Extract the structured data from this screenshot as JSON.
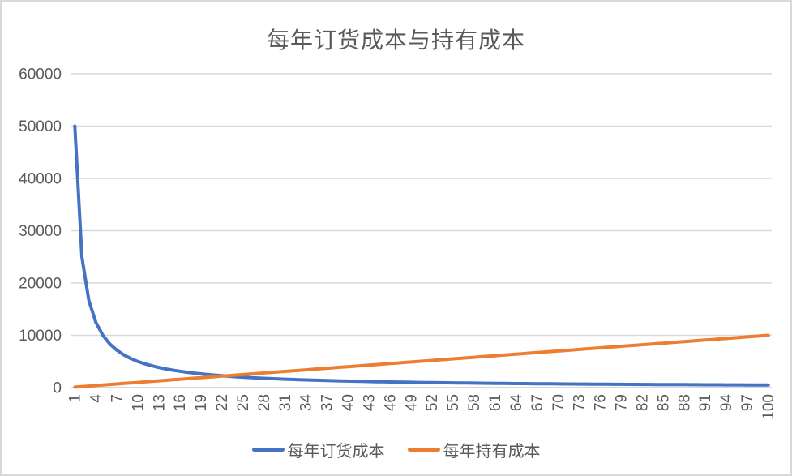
{
  "chart_data": {
    "type": "line",
    "title": "每年订货成本与持有成本",
    "x": [
      1,
      2,
      3,
      4,
      5,
      6,
      7,
      8,
      9,
      10,
      11,
      12,
      13,
      14,
      15,
      16,
      17,
      18,
      19,
      20,
      21,
      22,
      23,
      24,
      25,
      26,
      27,
      28,
      29,
      30,
      31,
      32,
      33,
      34,
      35,
      36,
      37,
      38,
      39,
      40,
      41,
      42,
      43,
      44,
      45,
      46,
      47,
      48,
      49,
      50,
      51,
      52,
      53,
      54,
      55,
      56,
      57,
      58,
      59,
      60,
      61,
      62,
      63,
      64,
      65,
      66,
      67,
      68,
      69,
      70,
      71,
      72,
      73,
      74,
      75,
      76,
      77,
      78,
      79,
      80,
      81,
      82,
      83,
      84,
      85,
      86,
      87,
      88,
      89,
      90,
      91,
      92,
      93,
      94,
      95,
      96,
      97,
      98,
      99,
      100
    ],
    "series": [
      {
        "name": "每年订货成本",
        "color": "#4472c4",
        "values": [
          50000,
          25000,
          16667,
          12500,
          10000,
          8333,
          7143,
          6250,
          5556,
          5000,
          4545,
          4167,
          3846,
          3571,
          3333,
          3125,
          2941,
          2778,
          2632,
          2500,
          2381,
          2273,
          2174,
          2083,
          2000,
          1923,
          1852,
          1786,
          1724,
          1667,
          1613,
          1563,
          1515,
          1471,
          1429,
          1389,
          1351,
          1316,
          1282,
          1250,
          1220,
          1190,
          1163,
          1136,
          1111,
          1087,
          1064,
          1042,
          1020,
          1000,
          980,
          962,
          943,
          926,
          909,
          893,
          877,
          862,
          847,
          833,
          820,
          806,
          794,
          781,
          769,
          758,
          746,
          735,
          725,
          714,
          704,
          694,
          685,
          676,
          667,
          658,
          649,
          641,
          633,
          625,
          617,
          610,
          602,
          595,
          588,
          581,
          575,
          568,
          562,
          556,
          549,
          543,
          538,
          532,
          526,
          521,
          515,
          510,
          505,
          500
        ]
      },
      {
        "name": "每年持有成本",
        "color": "#ed7d31",
        "values": [
          100,
          200,
          300,
          400,
          500,
          600,
          700,
          800,
          900,
          1000,
          1100,
          1200,
          1300,
          1400,
          1500,
          1600,
          1700,
          1800,
          1900,
          2000,
          2100,
          2200,
          2300,
          2400,
          2500,
          2600,
          2700,
          2800,
          2900,
          3000,
          3100,
          3200,
          3300,
          3400,
          3500,
          3600,
          3700,
          3800,
          3900,
          4000,
          4100,
          4200,
          4300,
          4400,
          4500,
          4600,
          4700,
          4800,
          4900,
          5000,
          5100,
          5200,
          5300,
          5400,
          5500,
          5600,
          5700,
          5800,
          5900,
          6000,
          6100,
          6200,
          6300,
          6400,
          6500,
          6600,
          6700,
          6800,
          6900,
          7000,
          7100,
          7200,
          7300,
          7400,
          7500,
          7600,
          7700,
          7800,
          7900,
          8000,
          8100,
          8200,
          8300,
          8400,
          8500,
          8600,
          8700,
          8800,
          8900,
          9000,
          9100,
          9200,
          9300,
          9400,
          9500,
          9600,
          9700,
          9800,
          9900,
          10000
        ]
      }
    ],
    "xticks": [
      1,
      4,
      7,
      10,
      13,
      16,
      19,
      22,
      25,
      28,
      31,
      34,
      37,
      40,
      43,
      46,
      49,
      52,
      55,
      58,
      61,
      64,
      67,
      70,
      73,
      76,
      79,
      82,
      85,
      88,
      91,
      94,
      97,
      100
    ],
    "yticks": [
      0,
      10000,
      20000,
      30000,
      40000,
      50000,
      60000
    ],
    "ylim": [
      0,
      60000
    ],
    "xlabel": "",
    "ylabel": "",
    "grid": true,
    "x_tick_rotation": -90,
    "legend_position": "bottom"
  },
  "style": {
    "grid_color": "#d9d9d9",
    "axis_color": "#c8c8c8",
    "text_color": "#595959",
    "border_color": "#d9d9d9",
    "line_width": 4
  }
}
